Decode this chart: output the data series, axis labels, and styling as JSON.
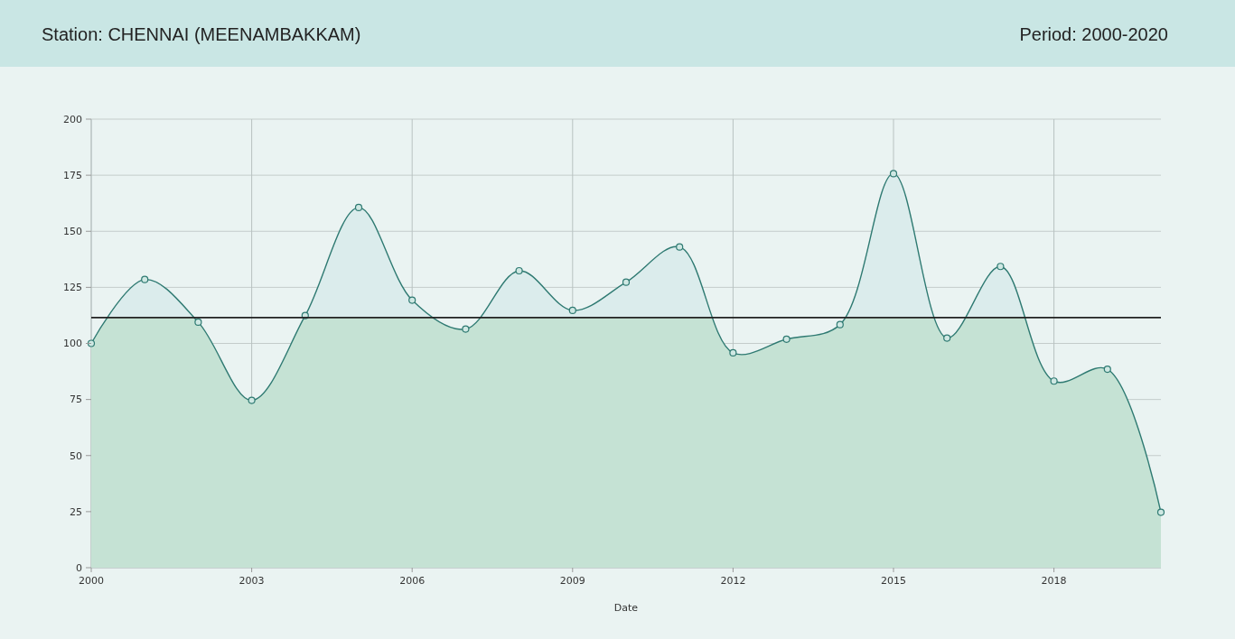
{
  "chart_data": {
    "type": "area",
    "title": "Station: CHENNAI (MEENAMBAKKAM)",
    "subtitle": "Period: 2000-2020",
    "xlabel": "Date",
    "x": [
      2000,
      2001,
      2002,
      2003,
      2004,
      2005,
      2006,
      2007,
      2008,
      2009,
      2010,
      2011,
      2012,
      2013,
      2014,
      2015,
      2016,
      2017,
      2018,
      2019,
      2020
    ],
    "series": [
      {
        "color": "#2f7a72",
        "values": [
          100,
          128.5,
          109.5,
          74.6,
          112.4,
          160.6,
          119.3,
          106.4,
          132.4,
          114.7,
          127.3,
          143,
          95.8,
          101.9,
          108.4,
          175.7,
          102.4,
          134.3,
          83.2,
          88.5,
          24.7
        ]
      }
    ],
    "xlim": [
      2000,
      2020
    ],
    "xticks": [
      2000,
      2003,
      2006,
      2009,
      2012,
      2015,
      2018
    ],
    "ylim": [
      0,
      200
    ],
    "yticks": [
      0,
      25,
      50,
      75,
      100,
      125,
      150,
      175,
      200
    ],
    "ref_lines": [
      {
        "axis": "y",
        "value": 111.5,
        "color": "#222222"
      }
    ],
    "grid": true,
    "marker": "circle",
    "line_style": "solid"
  }
}
